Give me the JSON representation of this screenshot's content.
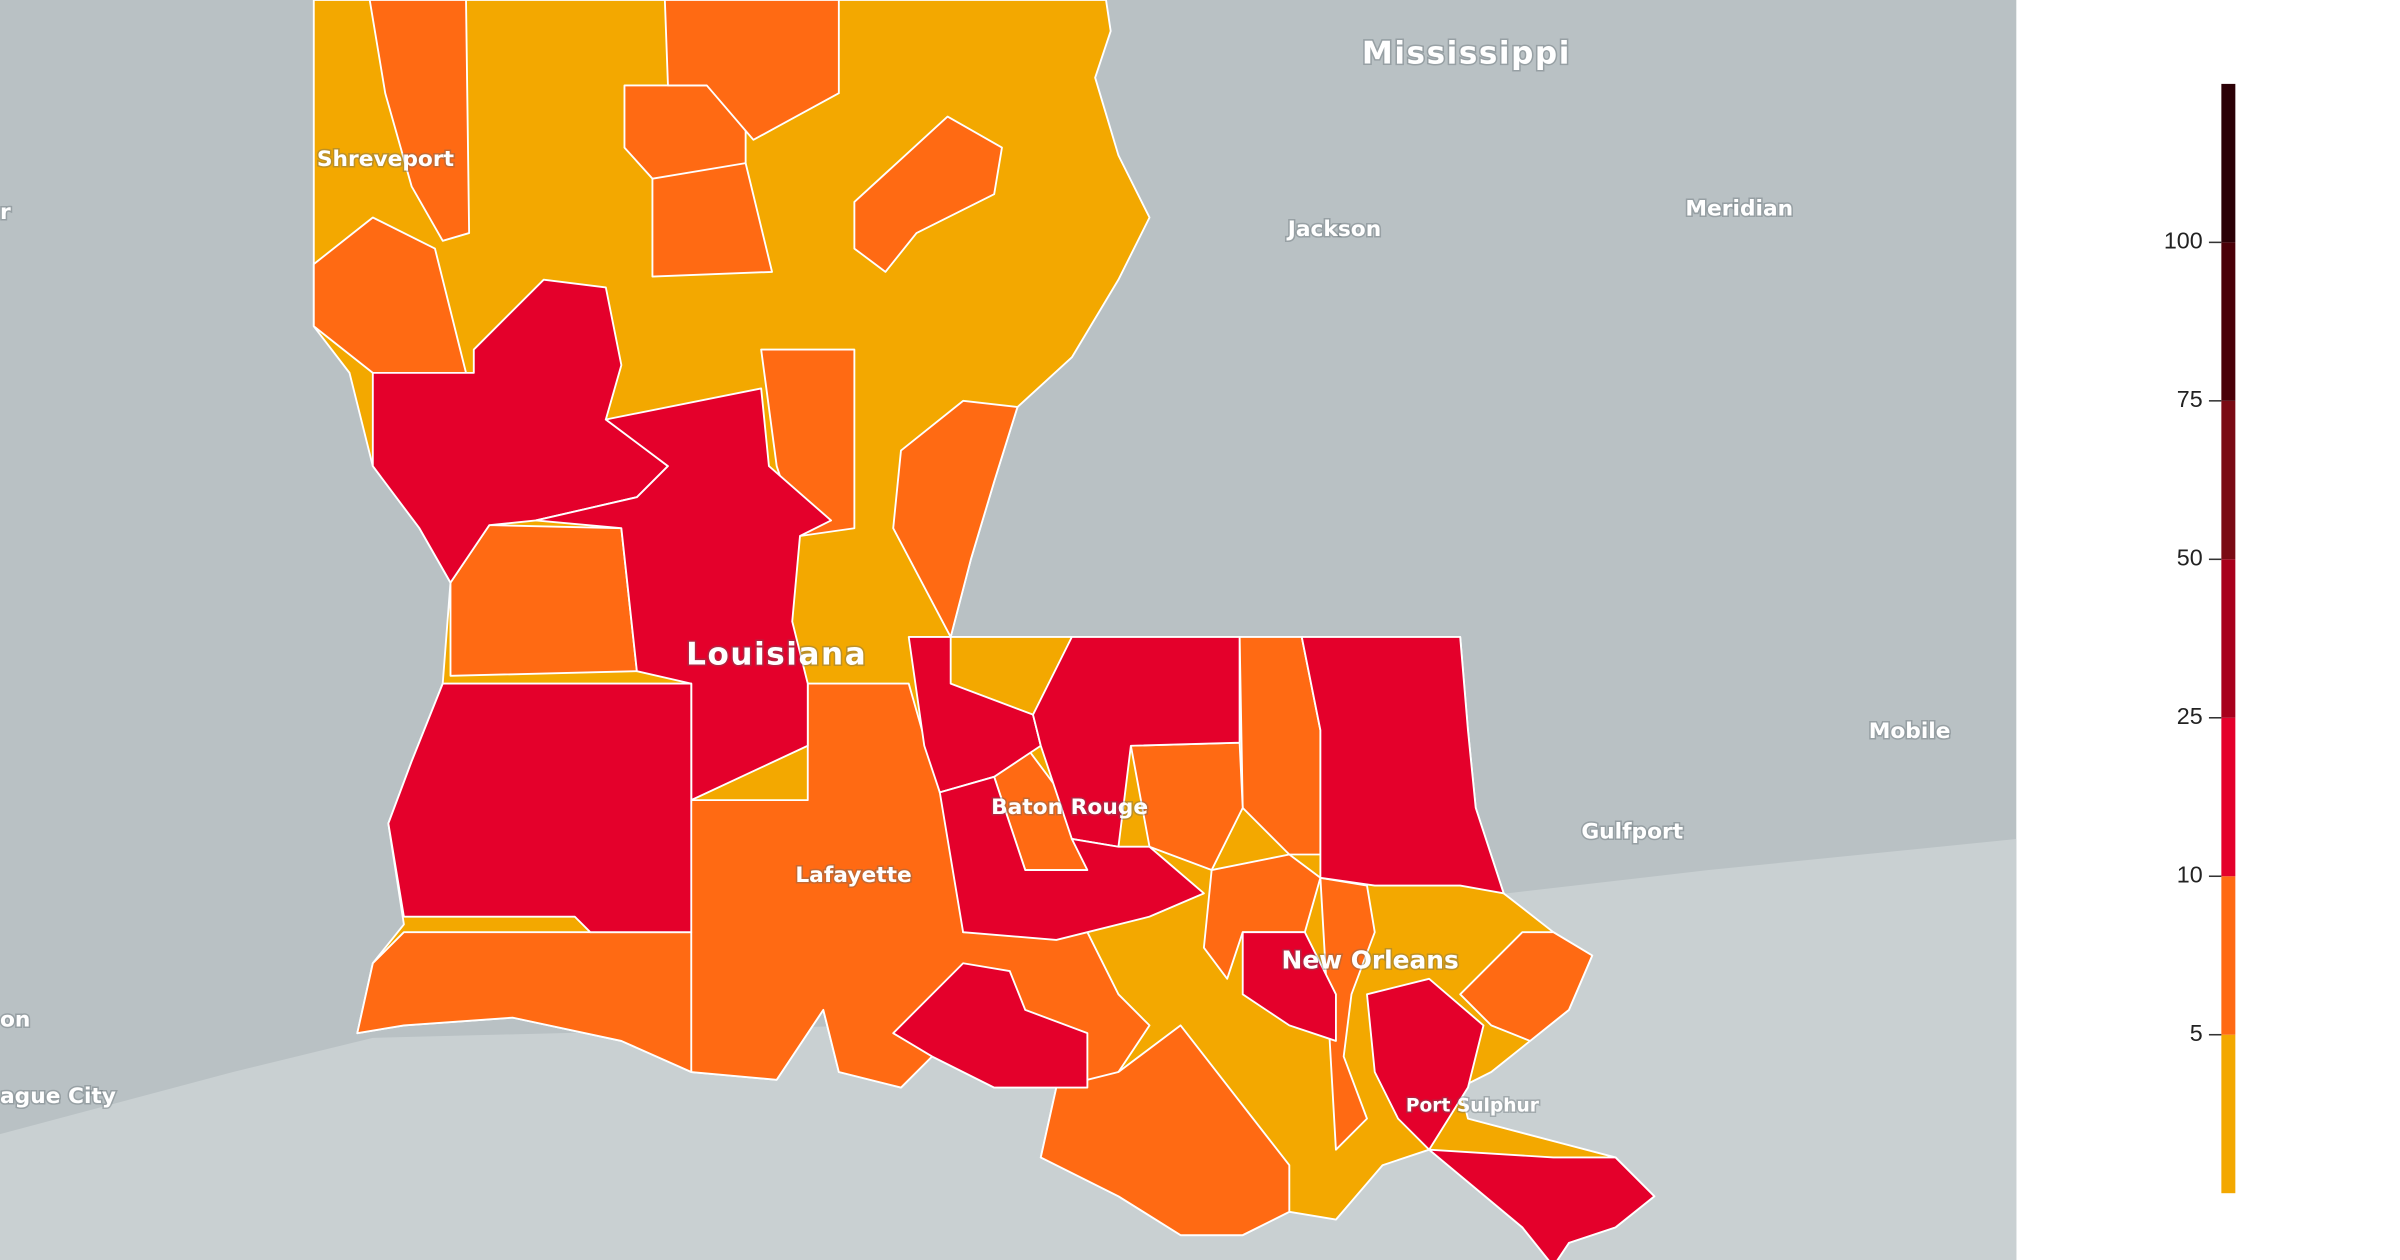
{
  "map": {
    "labels": [
      "Mississippi",
      "Shreveport",
      "Jackson",
      "Meridian",
      "Louisiana",
      "Mobile",
      "Gulfport",
      "Baton Rouge",
      "Lafayette",
      "New Orleans",
      "Port Sulphur",
      "ague City",
      "on",
      "r"
    ]
  },
  "legend": {
    "ticks": [
      5,
      10,
      25,
      50,
      75,
      100
    ],
    "colors": [
      "#f3a800",
      "#ff6a13",
      "#e4002b",
      "#a8001c",
      "#7a0b14",
      "#4a0008",
      "#2b0006"
    ]
  }
}
